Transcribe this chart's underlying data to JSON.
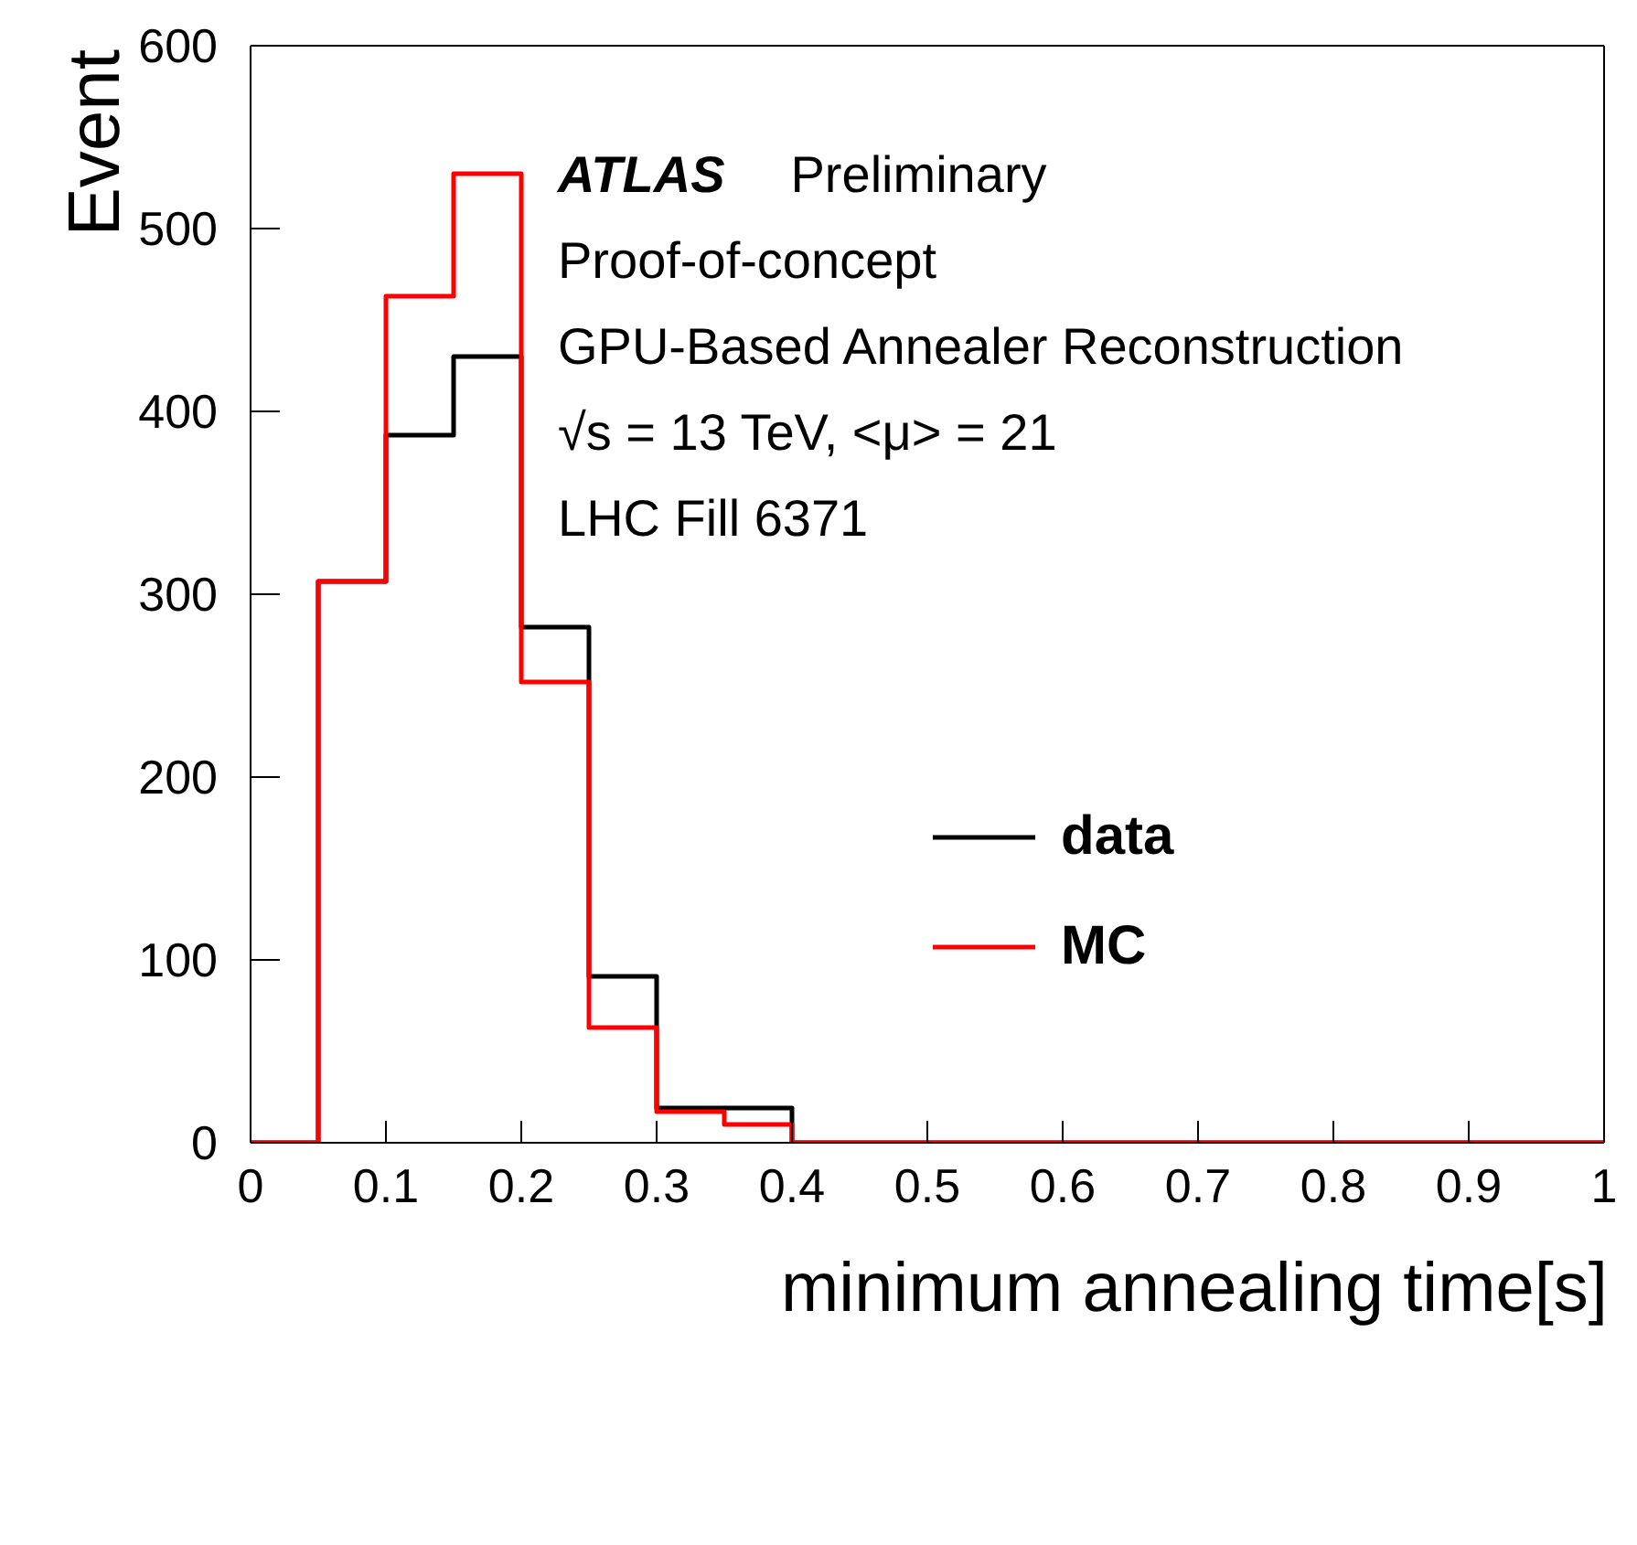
{
  "chart_data": {
    "type": "histogram",
    "xlabel": "minimum annealing time[s]",
    "ylabel": "Event",
    "bins": [
      0,
      0.05,
      0.1,
      0.15,
      0.2,
      0.25,
      0.3,
      0.35,
      0.4,
      0.45,
      0.5,
      0.55,
      0.6,
      0.65,
      0.7,
      0.75,
      0.8,
      0.85,
      0.9,
      0.95,
      1
    ],
    "series": [
      {
        "name": "data",
        "color": "#000000",
        "values": [
          0,
          307,
          387,
          430,
          282,
          91,
          19,
          19,
          0,
          0,
          0,
          0,
          0,
          0,
          0,
          0,
          0,
          0,
          0,
          0
        ]
      },
      {
        "name": "MC",
        "color": "#ff0000",
        "values": [
          0,
          307,
          463,
          530,
          252,
          63,
          17,
          10,
          0,
          0,
          0,
          0,
          0,
          0,
          0,
          0,
          0,
          0,
          0,
          0
        ]
      }
    ],
    "xlim": [
      0,
      1
    ],
    "xticks": [
      0,
      0.1,
      0.2,
      0.3,
      0.4,
      0.5,
      0.6,
      0.7,
      0.8,
      0.9,
      1
    ],
    "ylim": [
      0,
      600
    ],
    "yticks": [
      0,
      100,
      200,
      300,
      400,
      500,
      600
    ],
    "legend": "right",
    "grid": false,
    "annotations": [
      "ATLAS",
      "Preliminary",
      "Proof-of-concept",
      "GPU-Based Annealer Reconstruction",
      "√s = 13 TeV, <μ> = 21",
      "LHC Fill 6371"
    ]
  }
}
